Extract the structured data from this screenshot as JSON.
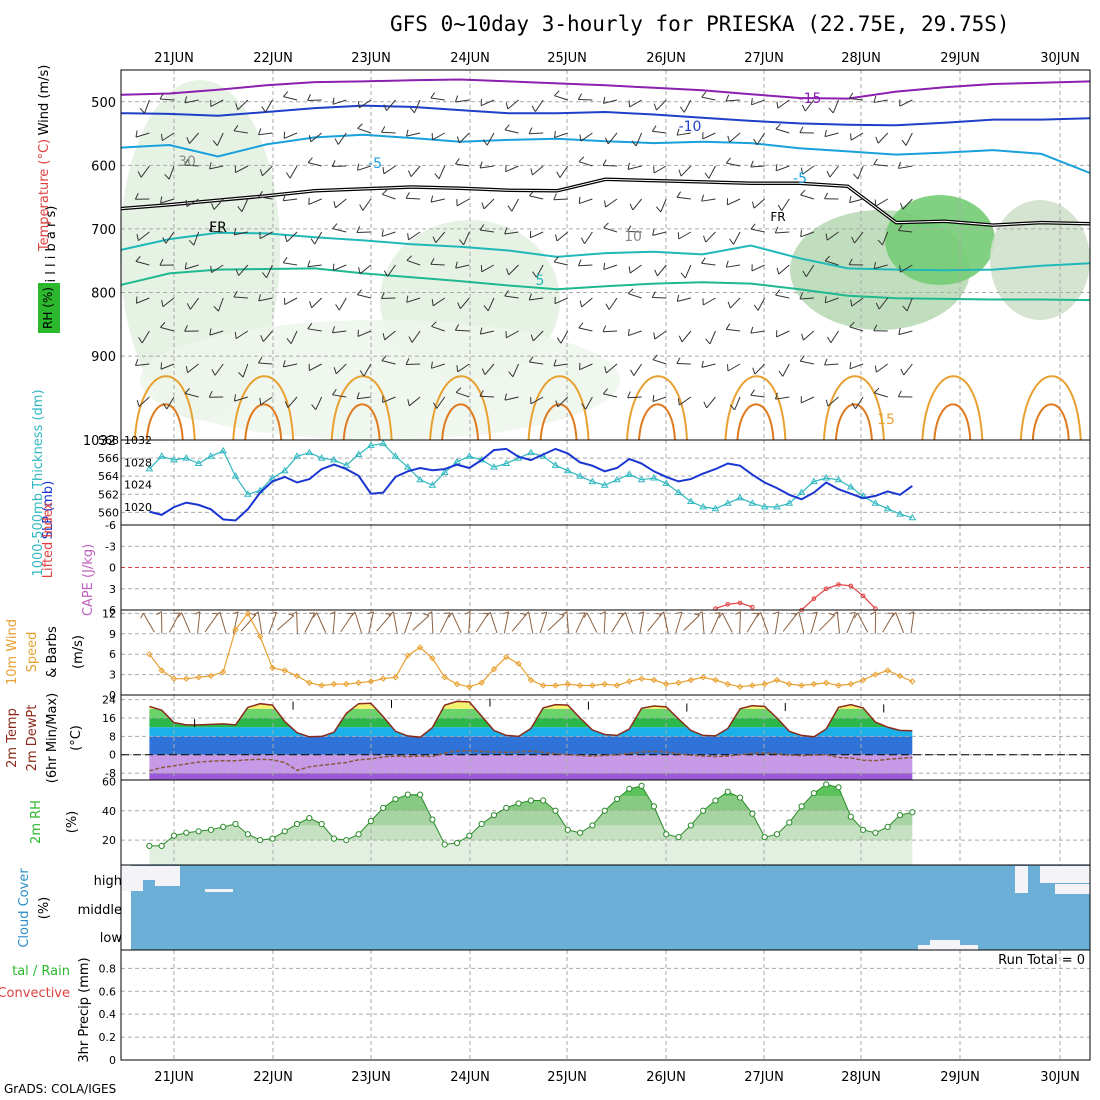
{
  "title": "GFS 0~10day 3-hourly for PRIESKA (22.75E, 29.75S)",
  "credit": "GrADS: COLA/IGES",
  "chart_data": [
    {
      "id": "upper-air",
      "type": "area",
      "date_labels": [
        "21JUN",
        "22JUN",
        "23JUN",
        "24JUN",
        "25JUN",
        "26JUN",
        "27JUN",
        "28JUN",
        "29JUN",
        "30JUN"
      ],
      "ylabel": "(m i l l i b a r s)",
      "side_labels": [
        "Wind (m/s)",
        "Temperature (°C)",
        "RH (%)"
      ],
      "yticks": [
        500,
        600,
        700,
        800,
        900,
        1032
      ],
      "ylim": [
        450,
        1032
      ],
      "freezing_label": "FR",
      "temperature_contours": [
        {
          "label": "-15",
          "color": "#8a1fb0",
          "p": [
            489,
            487,
            481,
            474,
            469,
            468,
            466,
            465,
            468,
            471,
            474,
            478,
            482,
            488,
            494,
            495,
            484,
            477,
            472,
            470,
            468
          ]
        },
        {
          "label": "-10",
          "color": "#1f3fc8",
          "p": [
            518,
            519,
            522,
            516,
            510,
            506,
            508,
            513,
            518,
            518,
            516,
            520,
            525,
            530,
            534,
            536,
            537,
            533,
            528,
            528,
            526
          ]
        },
        {
          "label": "-5",
          "color": "#1aa0dc",
          "p": [
            572,
            568,
            586,
            567,
            556,
            552,
            557,
            563,
            560,
            558,
            562,
            565,
            563,
            565,
            573,
            578,
            583,
            580,
            576,
            582,
            612
          ]
        },
        {
          "label": "FR",
          "color": "#000000",
          "p": [
            668,
            662,
            655,
            648,
            640,
            637,
            634,
            636,
            639,
            640,
            622,
            624,
            626,
            628,
            628,
            633,
            690,
            688,
            694,
            690,
            692
          ]
        },
        {
          "label": "5",
          "color": "#20b8b8",
          "p": [
            733,
            716,
            706,
            707,
            713,
            718,
            724,
            728,
            734,
            744,
            738,
            736,
            740,
            726,
            746,
            762,
            764,
            765,
            764,
            758,
            754
          ]
        },
        {
          "label": "10",
          "color": "#20b890",
          "p": [
            788,
            770,
            764,
            763,
            762,
            770,
            776,
            782,
            789,
            795,
            790,
            786,
            784,
            786,
            795,
            805,
            809,
            810,
            811,
            811,
            812
          ]
        }
      ],
      "labels": [
        "-15",
        "-10",
        "-5",
        "FR",
        "5",
        "-5",
        "30",
        "10",
        "15"
      ]
    },
    {
      "id": "slp-thickness",
      "type": "line",
      "ylabel_left": "1000-500mb Thickness (dm)",
      "ylabel_right": "SLP (mb)",
      "yticks_left": [
        560,
        562,
        564,
        566,
        568
      ],
      "yticks_right": [
        1020,
        1024,
        1028,
        1032
      ],
      "series": [
        {
          "name": "1000-500mb Thickness (dm)",
          "color": "#30b8c0",
          "values": [
            564.8,
            566.2,
            565.8,
            566.0,
            565.4,
            566.2,
            566.8,
            564.0,
            562.0,
            562.4,
            563.8,
            564.6,
            566.2,
            566.6,
            566.0,
            565.8,
            565.2,
            566.4,
            567.4,
            567.6,
            566.2,
            565.0,
            563.6,
            563.0,
            564.4,
            565.6,
            566.2,
            565.8,
            565.0,
            565.4,
            566.0,
            566.6,
            566.2,
            565.2,
            564.6,
            564.0,
            563.4,
            563.0,
            563.6,
            564.2,
            563.6,
            563.8,
            563.2,
            562.2,
            561.2,
            560.6,
            560.4,
            561.0,
            561.6,
            561.0,
            560.6,
            560.6,
            561.0,
            562.2,
            563.4,
            563.8,
            563.6,
            562.8,
            561.8,
            561.0,
            560.4,
            559.8,
            559.4
          ]
        },
        {
          "name": "SLP (mb)",
          "color": "#1a35d0",
          "values": [
            1019.2,
            1018.6,
            1020.0,
            1020.8,
            1020.4,
            1019.6,
            1017.8,
            1017.6,
            1019.6,
            1022.6,
            1024.6,
            1025.4,
            1024.4,
            1025.0,
            1026.8,
            1027.6,
            1026.8,
            1025.6,
            1022.4,
            1022.6,
            1025.4,
            1026.4,
            1027.0,
            1026.6,
            1026.8,
            1027.6,
            1027.0,
            1028.4,
            1030.2,
            1030.4,
            1029.0,
            1028.4,
            1029.4,
            1030.4,
            1029.6,
            1028.0,
            1027.4,
            1026.4,
            1027.0,
            1028.6,
            1027.8,
            1026.4,
            1025.4,
            1024.6,
            1025.0,
            1026.0,
            1026.8,
            1027.8,
            1027.4,
            1025.8,
            1024.4,
            1023.4,
            1022.2,
            1021.4,
            1022.6,
            1024.4,
            1023.2,
            1022.4,
            1021.6,
            1022.0,
            1022.8,
            1022.2,
            1023.8
          ]
        }
      ]
    },
    {
      "id": "cape-li",
      "type": "line",
      "ylabel_left": "Lifted Index",
      "ylabel_right": "CAPE (J/kg)",
      "yticks": [
        -6,
        -3,
        0,
        3,
        6
      ],
      "ylim": [
        -6,
        6
      ],
      "series": [
        {
          "name": "Lifted Index",
          "color": "#e04040",
          "values": [
            null,
            null,
            null,
            null,
            null,
            null,
            null,
            null,
            null,
            null,
            null,
            null,
            null,
            null,
            null,
            null,
            null,
            null,
            null,
            null,
            null,
            null,
            null,
            null,
            null,
            null,
            null,
            null,
            null,
            null,
            null,
            null,
            null,
            null,
            null,
            null,
            null,
            null,
            null,
            null,
            null,
            null,
            null,
            null,
            null,
            null,
            5.8,
            5.2,
            5.0,
            5.6,
            null,
            null,
            null,
            6.0,
            4.4,
            3.0,
            2.4,
            2.6,
            4.0,
            5.8,
            null,
            null,
            null
          ]
        }
      ]
    },
    {
      "id": "wind10m",
      "type": "line",
      "ylabel": "10m Wind Speed & Barbs (m/s)",
      "yticks": [
        0,
        3,
        6,
        9,
        12
      ],
      "ylim": [
        0,
        12.5
      ],
      "series": [
        {
          "name": "10m Wind Speed",
          "color": "#e8a030",
          "values": [
            6.0,
            3.6,
            2.4,
            2.4,
            2.6,
            2.8,
            3.4,
            9.6,
            12.0,
            8.6,
            4.0,
            3.6,
            2.8,
            1.8,
            1.4,
            1.6,
            1.6,
            1.8,
            2.0,
            2.4,
            2.6,
            5.8,
            7.0,
            5.4,
            2.6,
            1.6,
            1.2,
            1.8,
            3.8,
            5.6,
            4.6,
            2.2,
            1.4,
            1.4,
            1.6,
            1.4,
            1.4,
            1.6,
            1.4,
            2.0,
            2.4,
            2.2,
            1.6,
            1.8,
            2.2,
            2.6,
            2.2,
            1.6,
            1.2,
            1.4,
            1.6,
            2.2,
            1.6,
            1.4,
            1.6,
            1.8,
            1.4,
            1.6,
            2.2,
            3.0,
            3.6,
            2.8,
            2.0
          ]
        }
      ]
    },
    {
      "id": "temp2m",
      "type": "area",
      "ylabel": "2m Temp 2m DewPt (6hr Min/Max) (°C)",
      "yticks": [
        -8,
        0,
        8,
        16,
        24
      ],
      "ylim": [
        -11,
        26
      ],
      "series": [
        {
          "name": "2m Temp",
          "color": "#8b2a1a",
          "values": [
            21.0,
            19.4,
            14.0,
            13.0,
            13.0,
            13.2,
            13.4,
            13.0,
            20.6,
            22.2,
            21.6,
            14.4,
            9.6,
            7.8,
            8.0,
            9.8,
            18.0,
            22.2,
            22.4,
            16.6,
            10.2,
            8.2,
            7.6,
            11.8,
            21.6,
            23.2,
            23.0,
            16.8,
            10.6,
            8.4,
            8.0,
            11.4,
            20.4,
            21.8,
            21.6,
            16.0,
            10.8,
            8.8,
            8.4,
            11.2,
            20.2,
            21.2,
            20.8,
            15.6,
            10.6,
            8.4,
            8.2,
            11.4,
            20.0,
            21.4,
            21.0,
            16.0,
            10.2,
            8.4,
            7.8,
            11.2,
            20.6,
            21.8,
            20.4,
            14.2,
            12.0,
            10.6,
            10.4
          ]
        },
        {
          "name": "2m DewPt",
          "color": "#8a5a40",
          "values": [
            -7.0,
            -5.6,
            -4.8,
            -4.0,
            -3.2,
            -2.8,
            -2.6,
            -2.6,
            -2.2,
            -2.0,
            -2.2,
            -3.4,
            -6.8,
            -5.2,
            -4.6,
            -4.0,
            -3.4,
            -2.2,
            -1.8,
            -1.0,
            -0.6,
            -0.8,
            -0.6,
            -0.8,
            0.8,
            1.6,
            1.8,
            1.4,
            1.2,
            1.0,
            1.2,
            1.6,
            1.0,
            0.4,
            0.0,
            -0.4,
            -0.6,
            -0.4,
            0.0,
            0.6,
            1.2,
            1.4,
            1.2,
            0.4,
            -0.2,
            -0.6,
            -0.8,
            -0.6,
            0.0,
            0.6,
            0.8,
            0.4,
            -0.2,
            -0.4,
            -0.2,
            0.0,
            -1.2,
            -1.4,
            -2.4,
            -2.6,
            -2.0,
            -1.6,
            -1.2
          ]
        }
      ]
    },
    {
      "id": "rh2m",
      "type": "area",
      "ylabel": "2m RH (%)",
      "yticks": [
        20,
        40,
        60
      ],
      "ylim": [
        3,
        61
      ],
      "series": [
        {
          "name": "2m RH",
          "color": "#30a030",
          "values": [
            16,
            16,
            23,
            25,
            26,
            27,
            29,
            31,
            24,
            20,
            21,
            26,
            31,
            35,
            31,
            21,
            20,
            24,
            33,
            42,
            48,
            51,
            51,
            34,
            17,
            18,
            23,
            31,
            37,
            42,
            45,
            47,
            47,
            40,
            27,
            25,
            30,
            40,
            48,
            55,
            57,
            43,
            24,
            22,
            30,
            40,
            47,
            53,
            49,
            38,
            22,
            24,
            32,
            43,
            52,
            58,
            56,
            36,
            27,
            25,
            29,
            37,
            39
          ]
        }
      ]
    },
    {
      "id": "cloud",
      "type": "heatmap",
      "ylabel": "Cloud Cover (%)",
      "row_labels": [
        "high",
        "middle",
        "low"
      ],
      "fill_color": "#6baed6"
    },
    {
      "id": "precip",
      "type": "bar",
      "ylabel_left": "Total / Rain Convective",
      "ylabel": "3hr Precip (mm)",
      "yticks": [
        "0",
        "0.2",
        "0.4",
        "0.6",
        "0.8"
      ],
      "ylim": [
        0,
        0.96
      ],
      "run_total": "Run Total = 0",
      "values": []
    }
  ]
}
